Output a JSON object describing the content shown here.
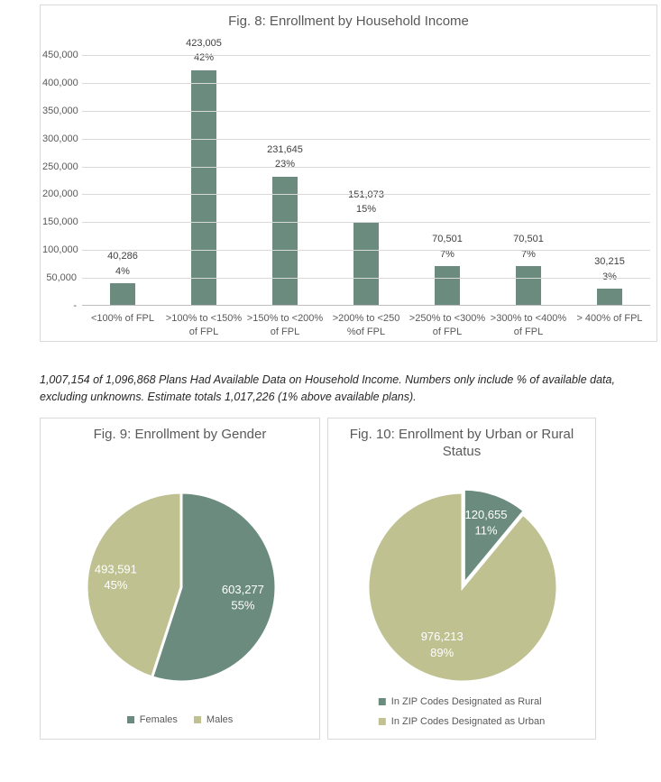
{
  "colors": {
    "dark_green": "#6A8B7E",
    "olive": "#BFC191",
    "title_gray": "#595959",
    "axis_gray": "#595959",
    "bar_label": "#404040",
    "gridline": "#d9d9d9",
    "box_border": "#d9d9d9",
    "note_text": "#262626",
    "pie_label": "#ffffff"
  },
  "note": {
    "text": "1,007,154 of 1,096,868 Plans Had Available Data on Household Income. Numbers only include % of available data, excluding unknowns. Estimate totals 1,017,226 (1% above available plans)."
  },
  "chart_data": [
    {
      "id": "fig8",
      "type": "bar",
      "title": "Fig. 8: Enrollment by Household Income",
      "categories": [
        "<100% of FPL",
        ">100% to <150%\nof FPL",
        ">150% to <200%\nof FPL",
        ">200% to <250\n%of FPL",
        ">250% to <300%\nof FPL",
        ">300% to <400%\nof FPL",
        "> 400% of FPL"
      ],
      "values": [
        40286,
        423005,
        231645,
        151073,
        70501,
        70501,
        30215
      ],
      "value_labels": [
        "40,286",
        "423,005",
        "231,645",
        "151,073",
        "70,501",
        "70,501",
        "30,215"
      ],
      "percent_labels": [
        "4%",
        "42%",
        "23%",
        "15%",
        "7%",
        "7%",
        "3%"
      ],
      "xlabel": "",
      "ylabel": "",
      "ylim": [
        0,
        450000
      ],
      "ytick_interval": 50000,
      "ytick_labels": [
        "-",
        "50,000",
        "100,000",
        "150,000",
        "200,000",
        "250,000",
        "300,000",
        "350,000",
        "400,000",
        "450,000"
      ],
      "bar_color": "#6A8B7E",
      "grid": true,
      "legend_position": "none"
    },
    {
      "id": "fig9",
      "type": "pie",
      "title": "Fig. 9: Enrollment by Gender",
      "slices": [
        {
          "label": "Females",
          "value": 603277,
          "value_label": "603,277",
          "percent": "55%",
          "color": "#6A8B7E",
          "exploded": false
        },
        {
          "label": "Males",
          "value": 493591,
          "value_label": "493,591",
          "percent": "45%",
          "color": "#BFC191",
          "exploded": false
        }
      ],
      "legend_position": "bottom-horizontal"
    },
    {
      "id": "fig10",
      "type": "pie",
      "title": "Fig. 10: Enrollment by Urban or Rural Status",
      "slices": [
        {
          "label": "In ZIP Codes Designated as Rural",
          "value": 120655,
          "value_label": "120,655",
          "percent": "11%",
          "color": "#6A8B7E",
          "exploded": true
        },
        {
          "label": "In ZIP Codes Designated as Urban",
          "value": 976213,
          "value_label": "976,213",
          "percent": "89%",
          "color": "#BFC191",
          "exploded": false
        }
      ],
      "legend_position": "bottom-vertical"
    }
  ]
}
